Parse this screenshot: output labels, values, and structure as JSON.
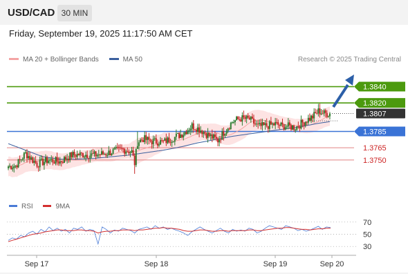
{
  "header": {
    "pair": "USD/CAD",
    "timeframe": "30 MIN",
    "datetime": "Friday, September 19, 2025 11:17:50 AM CET"
  },
  "legend": {
    "ma20_bb": "MA 20 + Bollinger Bands",
    "ma50": "MA 50",
    "rsi": "RSI",
    "ma9": "9MA"
  },
  "copyright": "Research © 2025 Trading Central",
  "colors": {
    "up_candle": "#2e7d32",
    "down_candle": "#c62828",
    "bollinger_fill": "#fde3e3",
    "ma20": "#f4a4a4",
    "ma50": "#3a5f9e",
    "resistance": "#4c9a0e",
    "pivot": "#3a73d6",
    "support": "#e08080",
    "current_price_bg": "#333333",
    "arrow": "#2c5fa8",
    "rsi_line": "#4a7bd6",
    "ma9_line": "#d32f2f"
  },
  "chart_data": [
    {
      "type": "candlestick",
      "title": "USD/CAD 30 MIN",
      "ylim": [
        1.3705,
        1.3865
      ],
      "x_ticks": [
        "Sep 17",
        "Sep 18",
        "Sep 19",
        "Sep 20"
      ],
      "levels": [
        {
          "value": 1.384,
          "label": "1.3840",
          "kind": "resistance"
        },
        {
          "value": 1.382,
          "label": "1.3820",
          "kind": "resistance"
        },
        {
          "value": 1.3807,
          "label": "1.3807",
          "kind": "current"
        },
        {
          "value": 1.3785,
          "label": "1.3785",
          "kind": "pivot"
        },
        {
          "value": 1.3765,
          "label": "1.3765",
          "kind": "support"
        },
        {
          "value": 1.375,
          "label": "1.3750",
          "kind": "support"
        }
      ],
      "series": [
        {
          "name": "MA 20 + Bollinger Bands"
        },
        {
          "name": "MA 50"
        }
      ],
      "anchors": [
        [
          0,
          1.3742
        ],
        [
          5,
          1.3743
        ],
        [
          12,
          1.3758
        ],
        [
          20,
          1.3745
        ],
        [
          28,
          1.375
        ],
        [
          36,
          1.3748
        ],
        [
          44,
          1.3756
        ],
        [
          52,
          1.3757
        ],
        [
          60,
          1.3756
        ],
        [
          68,
          1.3758
        ],
        [
          72,
          1.376
        ],
        [
          80,
          1.3763
        ],
        [
          86,
          1.376
        ],
        [
          88,
          1.3746
        ],
        [
          90,
          1.3772
        ],
        [
          94,
          1.3776
        ],
        [
          100,
          1.3773
        ],
        [
          108,
          1.3772
        ],
        [
          116,
          1.3778
        ],
        [
          122,
          1.3783
        ],
        [
          128,
          1.3792
        ],
        [
          134,
          1.3787
        ],
        [
          138,
          1.3782
        ],
        [
          142,
          1.3778
        ],
        [
          146,
          1.3774
        ],
        [
          150,
          1.3784
        ],
        [
          156,
          1.3797
        ],
        [
          162,
          1.3801
        ],
        [
          168,
          1.38
        ],
        [
          174,
          1.3791
        ],
        [
          180,
          1.3792
        ],
        [
          186,
          1.3794
        ],
        [
          190,
          1.3792
        ],
        [
          196,
          1.3791
        ],
        [
          200,
          1.379
        ],
        [
          206,
          1.3797
        ],
        [
          212,
          1.3803
        ],
        [
          216,
          1.381
        ],
        [
          220,
          1.3807
        ],
        [
          224,
          1.3807
        ]
      ],
      "ma50_pts": [
        [
          0,
          1.377
        ],
        [
          12,
          1.3762
        ],
        [
          24,
          1.3754
        ],
        [
          36,
          1.3751
        ],
        [
          48,
          1.3751
        ],
        [
          60,
          1.3752
        ],
        [
          72,
          1.3754
        ],
        [
          84,
          1.3756
        ],
        [
          96,
          1.3759
        ],
        [
          108,
          1.3762
        ],
        [
          120,
          1.3766
        ],
        [
          132,
          1.3771
        ],
        [
          144,
          1.3775
        ],
        [
          156,
          1.3779
        ],
        [
          168,
          1.3782
        ],
        [
          180,
          1.3785
        ],
        [
          192,
          1.3788
        ],
        [
          204,
          1.3791
        ],
        [
          216,
          1.3795
        ],
        [
          224,
          1.3797
        ]
      ],
      "band_half_width": [
        [
          0,
          0.0012
        ],
        [
          20,
          0.0012
        ],
        [
          60,
          0.0008
        ],
        [
          84,
          0.0009
        ],
        [
          90,
          0.0016
        ],
        [
          110,
          0.001
        ],
        [
          140,
          0.001
        ],
        [
          165,
          0.0014
        ],
        [
          200,
          0.0008
        ],
        [
          224,
          0.0012
        ]
      ]
    },
    {
      "type": "line",
      "title": "RSI",
      "ylim": [
        20,
        80
      ],
      "y_ticks": [
        70,
        50,
        30
      ],
      "x_ticks": [
        "Sep 17",
        "Sep 18",
        "Sep 19",
        "Sep 20"
      ],
      "series": [
        {
          "name": "RSI",
          "values": [
            40,
            44,
            42,
            48,
            46,
            52,
            55,
            50,
            58,
            54,
            62,
            56,
            60,
            55,
            58,
            52,
            60,
            58,
            62,
            55,
            58,
            56,
            34,
            62,
            58,
            52,
            57,
            55,
            60,
            58,
            56,
            52,
            58,
            60,
            62,
            58,
            64,
            60,
            62,
            58,
            60,
            57,
            55,
            52,
            48,
            54,
            58,
            62,
            58,
            55,
            52,
            56,
            60,
            55,
            52,
            58,
            55,
            57,
            55,
            60,
            58,
            52,
            55,
            60,
            64,
            62,
            60,
            58,
            64,
            62,
            60,
            56,
            58,
            55,
            57,
            60,
            63,
            58,
            62,
            61
          ]
        },
        {
          "name": "9MA",
          "values": [
            38,
            40,
            42,
            44,
            46,
            48,
            50,
            51,
            52,
            54,
            55,
            56,
            57,
            57,
            56,
            56,
            56,
            57,
            57,
            56,
            56,
            55,
            52,
            54,
            55,
            55,
            56,
            56,
            57,
            57,
            57,
            56,
            57,
            57,
            58,
            59,
            60,
            60,
            61,
            60,
            60,
            59,
            58,
            56,
            55,
            55,
            56,
            57,
            57,
            56,
            55,
            55,
            56,
            56,
            55,
            56,
            56,
            56,
            56,
            57,
            57,
            56,
            56,
            57,
            58,
            59,
            60,
            60,
            61,
            61,
            60,
            59,
            58,
            58,
            57,
            58,
            59,
            59,
            60,
            60
          ]
        }
      ]
    }
  ]
}
